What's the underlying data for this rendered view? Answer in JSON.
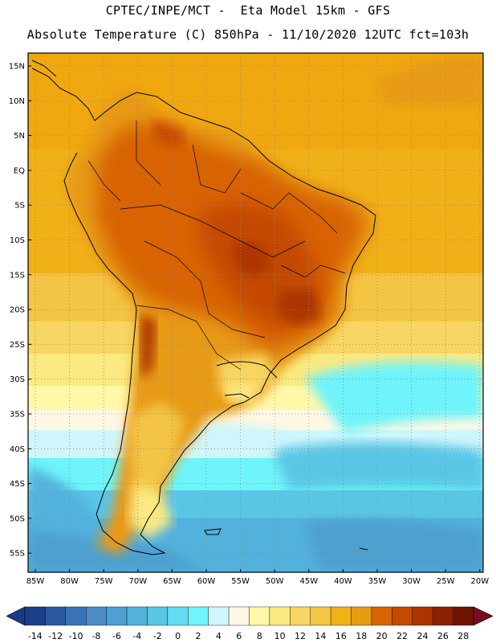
{
  "header": {
    "title_line1": "CPTEC/INPE/MCT -  Eta Model 15km - GFS",
    "title_line2": "Absolute Temperature (C) 850hPa - 11/10/2020 12UTC fct=103h"
  },
  "map": {
    "lat_labels": [
      "15N",
      "10N",
      "5N",
      "EQ",
      "5S",
      "10S",
      "15S",
      "20S",
      "25S",
      "30S",
      "35S",
      "40S",
      "45S",
      "50S",
      "55S"
    ],
    "lon_labels": [
      "85W",
      "80W",
      "75W",
      "70W",
      "65W",
      "60W",
      "55W",
      "50W",
      "45W",
      "40W",
      "35W",
      "30W",
      "25W",
      "20W"
    ],
    "gridlines": "dotted",
    "region": "South America"
  },
  "colorbar": {
    "labels": [
      "-14",
      "-12",
      "-10",
      "-8",
      "-6",
      "-4",
      "-2",
      "0",
      "2",
      "4",
      "6",
      "8",
      "10",
      "12",
      "14",
      "16",
      "18",
      "20",
      "22",
      "24",
      "26",
      "28"
    ],
    "colors": [
      "#1b3f8c",
      "#2a5aa0",
      "#3a74b6",
      "#4a8cc4",
      "#4ea0d0",
      "#52b2dc",
      "#5ac6e6",
      "#62dcf0",
      "#6ef4fa",
      "#cff6fb",
      "#fff8e4",
      "#fff8a8",
      "#fbe982",
      "#f8d664",
      "#f4c444",
      "#f0b018",
      "#e79a12",
      "#d86400",
      "#c44a00",
      "#ab3400",
      "#8c2000",
      "#6e1400"
    ],
    "min_color": "#1c3a86",
    "max_color": "#7a0a24"
  }
}
